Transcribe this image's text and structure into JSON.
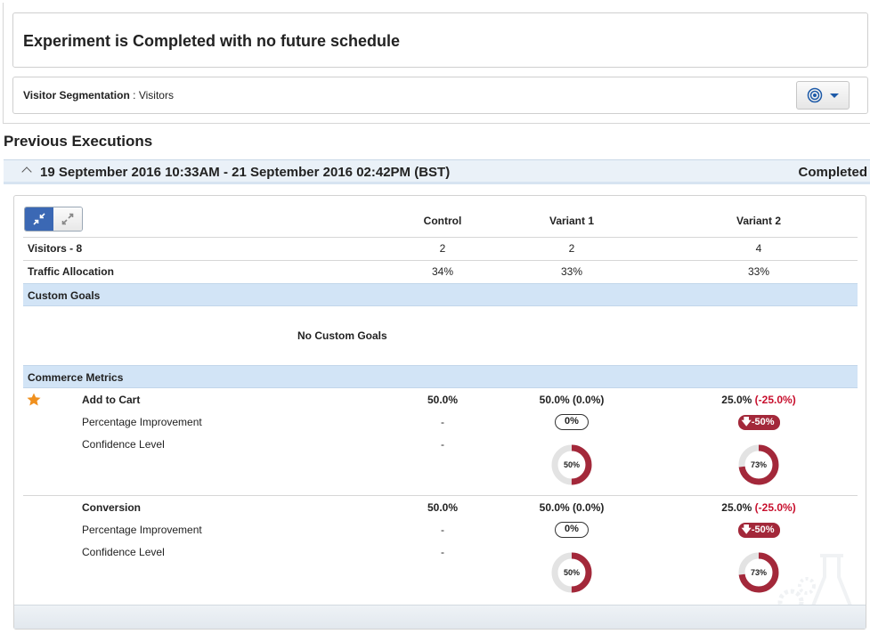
{
  "status": {
    "title": "Experiment is Completed with no future schedule"
  },
  "segmentation": {
    "label": "Visitor Segmentation",
    "separator": " : ",
    "value": "Visitors",
    "button_icon": "target-icon"
  },
  "previous": {
    "title": "Previous Executions",
    "range": "19 September 2016 10:33AM - 21 September 2016 02:42PM (BST)",
    "status": "Completed"
  },
  "table": {
    "columns": [
      "Control",
      "Variant 1",
      "Variant 2"
    ],
    "visitors": {
      "label": "Visitors - 8",
      "values": [
        "2",
        "2",
        "4"
      ]
    },
    "traffic": {
      "label": "Traffic Allocation",
      "values": [
        "34%",
        "33%",
        "33%"
      ]
    },
    "custom_goals": {
      "label": "Custom Goals",
      "empty": "No Custom Goals"
    },
    "commerce": {
      "label": "Commerce Metrics",
      "metrics": [
        {
          "name": "Add to Cart",
          "starred": true,
          "control": "50.0%",
          "v1_main": "50.0%",
          "v1_delta": "(0.0%)",
          "v2_main": "25.0%",
          "v2_delta": "(-25.0%)",
          "pi_label": "Percentage Improvement",
          "pi_control": "-",
          "pi_v1": "0%",
          "pi_v2": "-50%",
          "cl_label": "Confidence Level",
          "cl_control": "-",
          "cl_v1": 50,
          "cl_v2": 73
        },
        {
          "name": "Conversion",
          "starred": false,
          "control": "50.0%",
          "v1_main": "50.0%",
          "v1_delta": "(0.0%)",
          "v2_main": "25.0%",
          "v2_delta": "(-25.0%)",
          "pi_label": "Percentage Improvement",
          "pi_control": "-",
          "pi_v1": "0%",
          "pi_v2": "-50%",
          "cl_label": "Confidence Level",
          "cl_control": "-",
          "cl_v1": 50,
          "cl_v2": 73
        }
      ]
    }
  },
  "colors": {
    "accent": "#a3283a",
    "negative": "#c8102e",
    "band": "#d2e4f6",
    "star": "#f0901e"
  }
}
